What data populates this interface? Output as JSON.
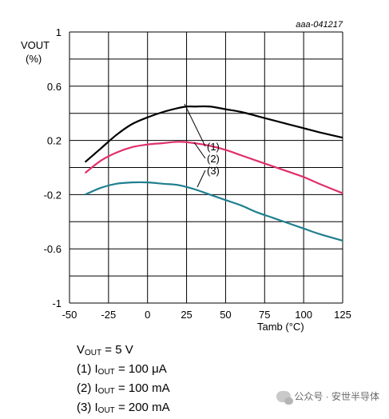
{
  "figure_id": "aaa-041217",
  "chart_data": {
    "type": "line",
    "ylabel_lines": [
      "VOUT",
      "(%)"
    ],
    "xlabel": "Tamb (°C)",
    "xlim": [
      -50,
      125
    ],
    "ylim": [
      -1,
      1
    ],
    "x_ticks": [
      -50,
      -25,
      0,
      25,
      50,
      75,
      100,
      125
    ],
    "y_ticks": [
      -1,
      -0.6,
      -0.2,
      0.2,
      0.6,
      1
    ],
    "y_tick_labels": [
      "-1",
      "-0.6",
      "-0.2",
      "0.2",
      "0.6",
      "1"
    ],
    "grid": true,
    "series": [
      {
        "name": "(1)",
        "color": "#000000",
        "x": [
          -40,
          -30,
          -20,
          -10,
          0,
          10,
          20,
          25,
          30,
          40,
          50,
          60,
          70,
          80,
          90,
          100,
          110,
          125
        ],
        "y": [
          0.04,
          0.14,
          0.24,
          0.32,
          0.37,
          0.41,
          0.44,
          0.45,
          0.45,
          0.45,
          0.43,
          0.41,
          0.38,
          0.35,
          0.32,
          0.29,
          0.26,
          0.22
        ]
      },
      {
        "name": "(2)",
        "color": "#e0306a",
        "x": [
          -40,
          -30,
          -20,
          -10,
          0,
          10,
          20,
          30,
          40,
          50,
          60,
          70,
          80,
          90,
          100,
          110,
          125
        ],
        "y": [
          -0.04,
          0.05,
          0.11,
          0.15,
          0.17,
          0.18,
          0.19,
          0.18,
          0.16,
          0.13,
          0.09,
          0.05,
          0.01,
          -0.03,
          -0.07,
          -0.12,
          -0.19
        ]
      },
      {
        "name": "(3)",
        "color": "#1f7f8f",
        "x": [
          -40,
          -30,
          -20,
          -10,
          0,
          10,
          20,
          30,
          40,
          50,
          60,
          70,
          80,
          90,
          100,
          110,
          125
        ],
        "y": [
          -0.2,
          -0.15,
          -0.12,
          -0.11,
          -0.11,
          -0.12,
          -0.13,
          -0.16,
          -0.2,
          -0.24,
          -0.28,
          -0.33,
          -0.37,
          -0.41,
          -0.45,
          -0.49,
          -0.54
        ]
      }
    ],
    "annotations": [
      "(1)",
      "(2)",
      "(3)"
    ]
  },
  "legend": {
    "vout": {
      "main": "V",
      "sub": "OUT",
      "rest": " = 5 V"
    },
    "items": [
      {
        "prefix": "(1) I",
        "sub": "OUT",
        "rest": " = 100 μA"
      },
      {
        "prefix": "(2) I",
        "sub": "OUT",
        "rest": " = 100 mA"
      },
      {
        "prefix": "(3) I",
        "sub": "OUT",
        "rest": " = 200 mA"
      }
    ]
  },
  "watermark": "公众号 · 安世半导体"
}
